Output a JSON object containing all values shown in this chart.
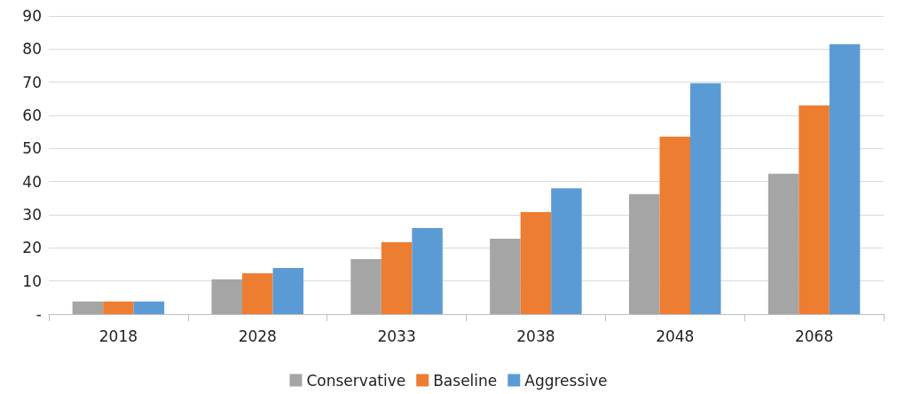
{
  "chart_data": {
    "type": "bar",
    "categories": [
      "2018",
      "2028",
      "2033",
      "2038",
      "2048",
      "2068"
    ],
    "series": [
      {
        "name": "Conservative",
        "color": "#a5a5a5",
        "values": [
          3.8,
          10.5,
          16.6,
          22.8,
          36.2,
          42.4
        ]
      },
      {
        "name": "Baseline",
        "color": "#ed7d31",
        "values": [
          3.8,
          12.3,
          21.7,
          30.8,
          53.6,
          63
        ]
      },
      {
        "name": "Aggressive",
        "color": "#5b9bd5",
        "values": [
          3.8,
          13.9,
          26,
          38,
          69.7,
          81.5
        ]
      }
    ],
    "ylim": [
      0,
      90
    ],
    "yticks": [
      {
        "value": 0,
        "label": "-"
      },
      10,
      20,
      30,
      40,
      50,
      60,
      70,
      80,
      90
    ],
    "grid": "y",
    "legend": "bottom"
  }
}
